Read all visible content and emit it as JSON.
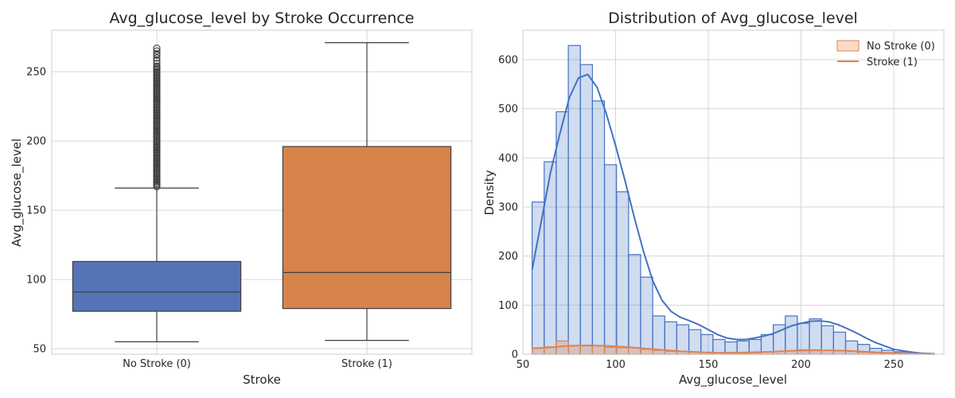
{
  "chart_data": [
    {
      "type": "box",
      "title": "Avg_glucose_level by Stroke Occurrence",
      "xlabel": "Stroke",
      "ylabel": "Avg_glucose_level",
      "categories": [
        "No Stroke (0)",
        "Stroke (1)"
      ],
      "ylim": [
        46,
        280
      ],
      "yticks": [
        50,
        100,
        150,
        200,
        250
      ],
      "grid": true,
      "boxes": [
        {
          "category": "No Stroke (0)",
          "color": "#5573b7",
          "whisker_low": 55,
          "q1": 77,
          "median": 91,
          "q3": 113,
          "whisker_high": 166,
          "outliers": [
            167,
            168,
            169,
            170,
            171,
            172,
            173,
            174,
            175,
            176,
            177,
            178,
            179,
            180,
            181,
            182,
            183,
            184,
            185,
            186,
            187,
            188,
            189,
            190,
            191,
            192,
            193,
            194,
            195,
            196,
            197,
            198,
            199,
            200,
            201,
            202,
            203,
            204,
            205,
            206,
            207,
            208,
            209,
            210,
            211,
            212,
            213,
            214,
            215,
            216,
            217,
            218,
            219,
            220,
            221,
            222,
            223,
            224,
            225,
            226,
            227,
            228,
            229,
            230,
            231,
            232,
            233,
            234,
            235,
            236,
            237,
            238,
            239,
            240,
            241,
            242,
            243,
            244,
            245,
            246,
            247,
            248,
            249,
            250,
            251,
            252,
            253,
            254,
            256,
            258,
            260,
            262,
            263,
            265,
            267
          ]
        },
        {
          "category": "Stroke (1)",
          "color": "#d6834a",
          "whisker_low": 56,
          "q1": 79,
          "median": 105,
          "q3": 196,
          "whisker_high": 271,
          "outliers": []
        }
      ]
    },
    {
      "type": "histogram",
      "title": "Distribution of Avg_glucose_level",
      "xlabel": "Avg_glucose_level",
      "ylabel": "Density",
      "xlim": [
        50,
        277
      ],
      "ylim": [
        0,
        660
      ],
      "xticks": [
        50,
        100,
        150,
        200,
        250
      ],
      "yticks": [
        0,
        100,
        200,
        300,
        400,
        500,
        600
      ],
      "grid": true,
      "legend_position": "top-right",
      "bin_edges": [
        55,
        61.5,
        68,
        74.5,
        81,
        87.5,
        94,
        100.5,
        107,
        113.5,
        120,
        126.5,
        133,
        139.5,
        146,
        152.5,
        159,
        165.5,
        172,
        178.5,
        185,
        191.5,
        198,
        204.5,
        211,
        217.5,
        224,
        230.5,
        237,
        243.5,
        250,
        256.5,
        263,
        269.5
      ],
      "series": [
        {
          "name": "No Stroke (0)",
          "color": "#4472c4",
          "legend_color": "#dd8452",
          "counts": [
            310,
            392,
            494,
            629,
            590,
            516,
            386,
            331,
            203,
            157,
            78,
            66,
            60,
            50,
            40,
            30,
            25,
            27,
            30,
            40,
            60,
            78,
            63,
            72,
            58,
            45,
            27,
            20,
            12,
            8,
            5,
            3,
            2
          ],
          "kde_x": [
            55,
            60,
            65,
            70,
            75,
            80,
            85,
            90,
            95,
            100,
            105,
            110,
            115,
            120,
            125,
            130,
            135,
            140,
            145,
            150,
            155,
            160,
            165,
            170,
            175,
            180,
            185,
            190,
            195,
            200,
            205,
            210,
            215,
            220,
            225,
            230,
            235,
            240,
            245,
            250,
            255,
            260,
            265,
            270,
            272
          ],
          "kde_y": [
            172,
            272,
            372,
            450,
            522,
            563,
            570,
            544,
            490,
            425,
            355,
            280,
            210,
            150,
            110,
            87,
            75,
            68,
            60,
            50,
            40,
            33,
            30,
            30,
            33,
            37,
            42,
            50,
            58,
            63,
            67,
            68,
            66,
            60,
            52,
            43,
            33,
            24,
            17,
            10,
            7,
            4,
            2,
            1,
            1
          ]
        },
        {
          "name": "Stroke (1)",
          "color": "#dd8452",
          "counts": [
            12,
            15,
            27,
            17,
            17,
            17,
            14,
            13,
            13,
            10,
            8,
            6,
            6,
            5,
            4,
            3,
            2,
            2,
            3,
            5,
            6,
            7,
            9,
            9,
            8,
            7,
            6,
            4,
            3,
            2,
            1,
            1,
            1
          ],
          "kde_x": [
            55,
            65,
            75,
            85,
            95,
            105,
            115,
            125,
            135,
            145,
            155,
            165,
            175,
            185,
            195,
            205,
            215,
            225,
            235,
            245,
            255,
            265,
            272
          ],
          "kde_y": [
            12,
            14,
            17,
            18,
            17,
            15,
            12,
            9,
            6,
            4,
            3,
            3,
            4,
            5,
            7,
            8,
            8,
            7,
            5,
            3,
            2,
            1,
            0
          ]
        }
      ]
    }
  ]
}
